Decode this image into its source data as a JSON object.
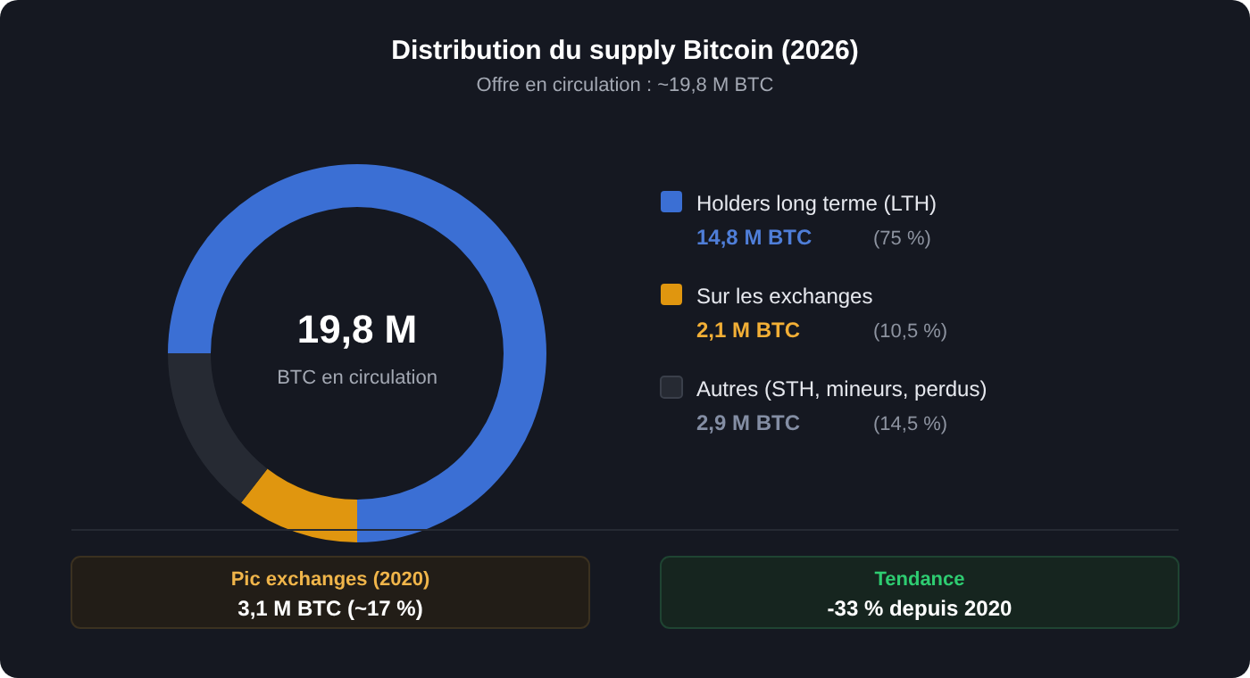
{
  "chart_data": {
    "type": "donut",
    "title": "Distribution du supply Bitcoin (2026)",
    "subtitle": "Offre en circulation : ~19,8 M BTC",
    "categories": [
      "Holders long terme (LTH)",
      "Sur les exchanges",
      "Autres (STH, mineurs, perdus)"
    ],
    "values": [
      75,
      10.5,
      14.5
    ],
    "colors": [
      "#3b6fd4",
      "#e0960f",
      "#262a33"
    ],
    "value_labels": [
      "(75 %)",
      "(10,5 %)",
      "(14,5 %)"
    ],
    "legend": "right",
    "annotations": [
      "19,8 M",
      "BTC en circulation",
      {
        "text": "14,8 M BTC",
        "x": "Holders long terme (LTH)"
      },
      {
        "text": "2,1 M BTC",
        "x": "Sur les exchanges"
      },
      {
        "text": "2,9 M BTC",
        "x": "Autres (STH, mineurs, perdus)"
      },
      "Pic exchanges (2020)",
      "3,1 M BTC (~17 %)",
      "Tendance",
      "-33 % depuis 2020"
    ]
  }
}
